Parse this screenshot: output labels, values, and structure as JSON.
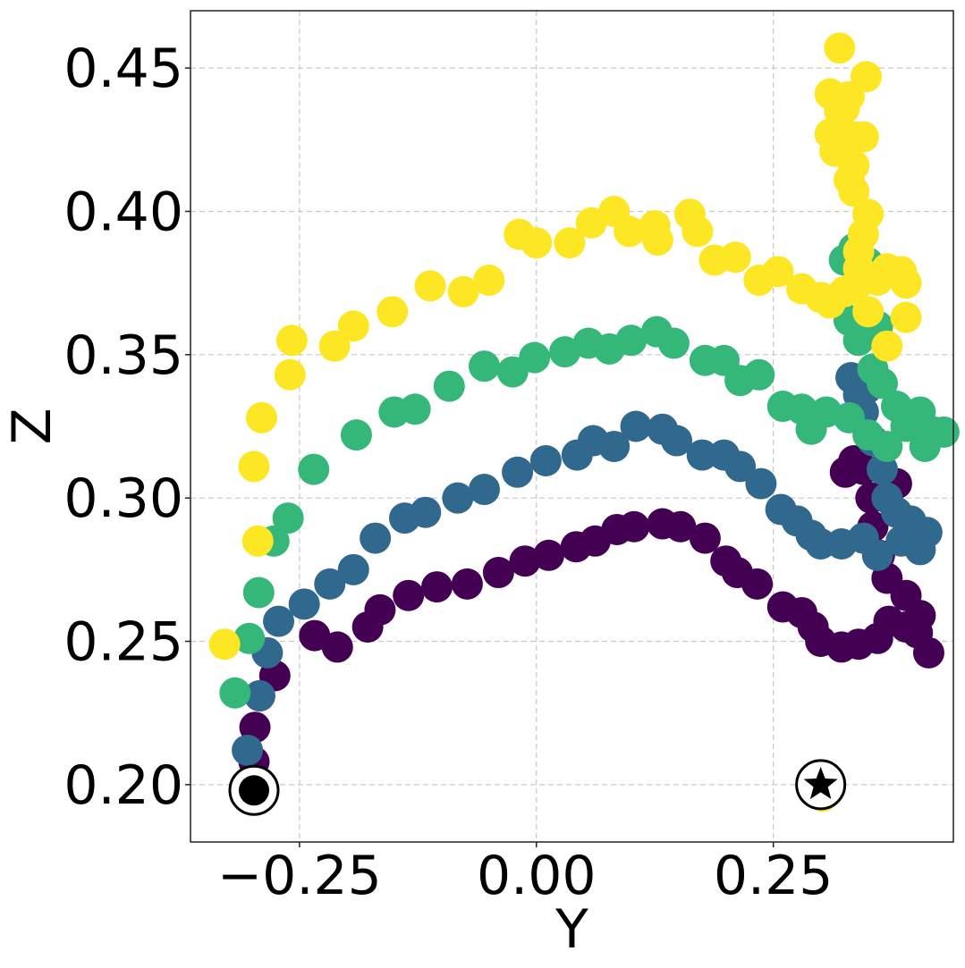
{
  "chart_data": {
    "type": "scatter",
    "title": "",
    "xlabel": "Y",
    "ylabel": "Z",
    "xlim": [
      -0.365,
      0.44
    ],
    "ylim": [
      0.18,
      0.47
    ],
    "xticks": [
      -0.25,
      0.0,
      0.25
    ],
    "xtick_labels": [
      "−0.25",
      "0.00",
      "0.25"
    ],
    "yticks": [
      0.2,
      0.25,
      0.3,
      0.35,
      0.4,
      0.45
    ],
    "ytick_labels": [
      "0.20",
      "0.25",
      "0.30",
      "0.35",
      "0.40",
      "0.45"
    ],
    "grid": true,
    "start_marker": {
      "x": -0.298,
      "y": 0.198,
      "shape": "circle"
    },
    "end_marker": {
      "x": 0.3,
      "y": 0.2,
      "shape": "star"
    },
    "series": [
      {
        "color": "#440154",
        "points": [
          [
            -0.298,
            0.208
          ],
          [
            -0.297,
            0.22
          ],
          [
            -0.292,
            0.231
          ],
          [
            -0.276,
            0.238
          ],
          [
            -0.234,
            0.252
          ],
          [
            -0.21,
            0.248
          ],
          [
            -0.178,
            0.255
          ],
          [
            -0.165,
            0.261
          ],
          [
            -0.135,
            0.266
          ],
          [
            -0.105,
            0.269
          ],
          [
            -0.073,
            0.27
          ],
          [
            -0.04,
            0.274
          ],
          [
            -0.012,
            0.278
          ],
          [
            0.013,
            0.28
          ],
          [
            0.042,
            0.283
          ],
          [
            0.062,
            0.285
          ],
          [
            0.085,
            0.289
          ],
          [
            0.103,
            0.29
          ],
          [
            0.133,
            0.291
          ],
          [
            0.152,
            0.29
          ],
          [
            0.178,
            0.286
          ],
          [
            0.2,
            0.278
          ],
          [
            0.212,
            0.274
          ],
          [
            0.233,
            0.27
          ],
          [
            0.26,
            0.262
          ],
          [
            0.28,
            0.26
          ],
          [
            0.292,
            0.255
          ],
          [
            0.3,
            0.25
          ],
          [
            0.322,
            0.248
          ],
          [
            0.34,
            0.249
          ],
          [
            0.36,
            0.251
          ],
          [
            0.372,
            0.257
          ],
          [
            0.39,
            0.255
          ],
          [
            0.402,
            0.253
          ],
          [
            0.414,
            0.246
          ],
          [
            0.405,
            0.259
          ],
          [
            0.39,
            0.266
          ],
          [
            0.37,
            0.272
          ],
          [
            0.362,
            0.28
          ],
          [
            0.355,
            0.29
          ],
          [
            0.353,
            0.3
          ],
          [
            0.345,
            0.31
          ],
          [
            0.335,
            0.313
          ],
          [
            0.326,
            0.309
          ],
          [
            0.38,
            0.305
          ]
        ]
      },
      {
        "color": "#31688e",
        "points": [
          [
            -0.305,
            0.212
          ],
          [
            -0.292,
            0.231
          ],
          [
            -0.284,
            0.246
          ],
          [
            -0.272,
            0.257
          ],
          [
            -0.245,
            0.263
          ],
          [
            -0.218,
            0.27
          ],
          [
            -0.193,
            0.275
          ],
          [
            -0.17,
            0.286
          ],
          [
            -0.139,
            0.293
          ],
          [
            -0.117,
            0.295
          ],
          [
            -0.083,
            0.3
          ],
          [
            -0.055,
            0.303
          ],
          [
            -0.02,
            0.309
          ],
          [
            0.01,
            0.313
          ],
          [
            0.043,
            0.315
          ],
          [
            0.06,
            0.32
          ],
          [
            0.082,
            0.318
          ],
          [
            0.105,
            0.325
          ],
          [
            0.133,
            0.324
          ],
          [
            0.148,
            0.32
          ],
          [
            0.175,
            0.315
          ],
          [
            0.198,
            0.315
          ],
          [
            0.215,
            0.311
          ],
          [
            0.237,
            0.305
          ],
          [
            0.258,
            0.296
          ],
          [
            0.275,
            0.292
          ],
          [
            0.29,
            0.287
          ],
          [
            0.3,
            0.284
          ],
          [
            0.322,
            0.284
          ],
          [
            0.345,
            0.286
          ],
          [
            0.36,
            0.28
          ],
          [
            0.385,
            0.285
          ],
          [
            0.405,
            0.282
          ],
          [
            0.412,
            0.288
          ],
          [
            0.395,
            0.292
          ],
          [
            0.38,
            0.295
          ],
          [
            0.37,
            0.3
          ],
          [
            0.365,
            0.31
          ],
          [
            0.355,
            0.32
          ],
          [
            0.345,
            0.33
          ],
          [
            0.34,
            0.336
          ],
          [
            0.332,
            0.342
          ],
          [
            0.348,
            0.338
          ]
        ]
      },
      {
        "color": "#35b779",
        "points": [
          [
            -0.318,
            0.232
          ],
          [
            -0.303,
            0.251
          ],
          [
            -0.293,
            0.267
          ],
          [
            -0.277,
            0.285
          ],
          [
            -0.262,
            0.293
          ],
          [
            -0.235,
            0.31
          ],
          [
            -0.19,
            0.322
          ],
          [
            -0.15,
            0.33
          ],
          [
            -0.128,
            0.331
          ],
          [
            -0.092,
            0.339
          ],
          [
            -0.055,
            0.346
          ],
          [
            -0.025,
            0.344
          ],
          [
            -0.002,
            0.349
          ],
          [
            0.03,
            0.351
          ],
          [
            0.055,
            0.354
          ],
          [
            0.077,
            0.352
          ],
          [
            0.1,
            0.355
          ],
          [
            0.127,
            0.358
          ],
          [
            0.145,
            0.354
          ],
          [
            0.178,
            0.348
          ],
          [
            0.198,
            0.348
          ],
          [
            0.215,
            0.341
          ],
          [
            0.235,
            0.343
          ],
          [
            0.26,
            0.332
          ],
          [
            0.28,
            0.331
          ],
          [
            0.29,
            0.324
          ],
          [
            0.306,
            0.33
          ],
          [
            0.33,
            0.328
          ],
          [
            0.35,
            0.322
          ],
          [
            0.37,
            0.318
          ],
          [
            0.39,
            0.325
          ],
          [
            0.41,
            0.318
          ],
          [
            0.42,
            0.323
          ],
          [
            0.43,
            0.323
          ],
          [
            0.405,
            0.33
          ],
          [
            0.38,
            0.332
          ],
          [
            0.365,
            0.34
          ],
          [
            0.355,
            0.345
          ],
          [
            0.34,
            0.355
          ],
          [
            0.33,
            0.362
          ],
          [
            0.325,
            0.383
          ],
          [
            0.335,
            0.387
          ],
          [
            0.35,
            0.382
          ],
          [
            0.36,
            0.36
          ]
        ]
      },
      {
        "color": "#fde725",
        "points": [
          [
            -0.329,
            0.249
          ],
          [
            -0.294,
            0.285
          ],
          [
            -0.298,
            0.311
          ],
          [
            -0.29,
            0.328
          ],
          [
            -0.26,
            0.343
          ],
          [
            -0.258,
            0.355
          ],
          [
            -0.213,
            0.353
          ],
          [
            -0.193,
            0.36
          ],
          [
            -0.152,
            0.365
          ],
          [
            -0.112,
            0.374
          ],
          [
            -0.077,
            0.372
          ],
          [
            -0.05,
            0.376
          ],
          [
            -0.018,
            0.392
          ],
          [
            0.0,
            0.389
          ],
          [
            0.035,
            0.389
          ],
          [
            0.058,
            0.396
          ],
          [
            0.082,
            0.4
          ],
          [
            0.098,
            0.393
          ],
          [
            0.125,
            0.395
          ],
          [
            0.128,
            0.39
          ],
          [
            0.162,
            0.399
          ],
          [
            0.17,
            0.393
          ],
          [
            0.188,
            0.383
          ],
          [
            0.21,
            0.384
          ],
          [
            0.235,
            0.376
          ],
          [
            0.255,
            0.379
          ],
          [
            0.28,
            0.373
          ],
          [
            0.3,
            0.37
          ],
          [
            0.31,
            0.368
          ],
          [
            0.325,
            0.372
          ],
          [
            0.34,
            0.375
          ],
          [
            0.36,
            0.376
          ],
          [
            0.37,
            0.38
          ],
          [
            0.385,
            0.379
          ],
          [
            0.39,
            0.375
          ],
          [
            0.39,
            0.363
          ],
          [
            0.37,
            0.353
          ],
          [
            0.35,
            0.365
          ],
          [
            0.34,
            0.38
          ],
          [
            0.34,
            0.386
          ],
          [
            0.345,
            0.392
          ],
          [
            0.35,
            0.399
          ],
          [
            0.335,
            0.407
          ],
          [
            0.33,
            0.411
          ],
          [
            0.335,
            0.416
          ],
          [
            0.315,
            0.421
          ],
          [
            0.31,
            0.427
          ],
          [
            0.335,
            0.426
          ],
          [
            0.345,
            0.426
          ],
          [
            0.32,
            0.435
          ],
          [
            0.33,
            0.44
          ],
          [
            0.31,
            0.441
          ],
          [
            0.325,
            0.436
          ],
          [
            0.348,
            0.447
          ],
          [
            0.32,
            0.457
          ],
          [
            0.302,
            0.196
          ]
        ]
      }
    ]
  }
}
